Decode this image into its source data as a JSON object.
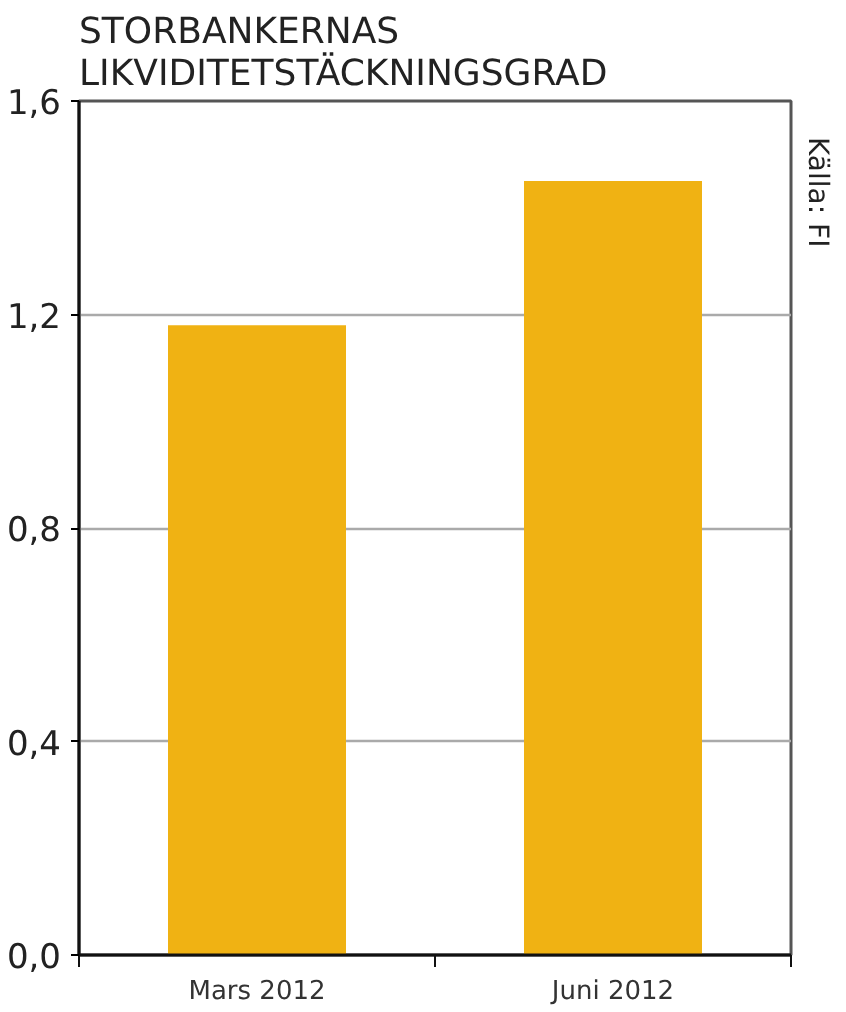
{
  "chart_data": {
    "type": "bar",
    "title": "STORBANKERNAS LIKVIDITETSTÄCKNINGSGRAD",
    "categories": [
      "Mars 2012",
      "Juni 2012"
    ],
    "values": [
      1.18,
      1.45
    ],
    "color": "#f0b213",
    "ylim": [
      0,
      1.6
    ],
    "yticks": [
      {
        "value": 0,
        "label": "0,0"
      },
      {
        "value": 0.4,
        "label": "0,4"
      },
      {
        "value": 0.8,
        "label": "0,8"
      },
      {
        "value": 1.2,
        "label": "1,2"
      },
      {
        "value": 1.6,
        "label": "1,6"
      }
    ],
    "grid": "y",
    "annotations": [
      "Källa: FI"
    ]
  }
}
